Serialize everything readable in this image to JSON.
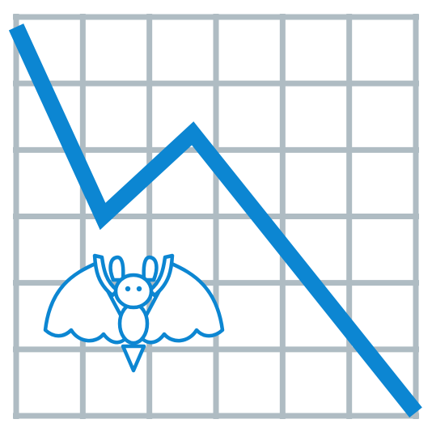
{
  "icon": {
    "name": "declining-chart-with-bat-icon",
    "grid_color": "#AFBCC3",
    "line_color": "#0C86D2",
    "bat_color": "#0C86D2",
    "background_color": "#FFFFFF"
  },
  "chart_data": {
    "type": "line",
    "title": "",
    "xlabel": "",
    "ylabel": "",
    "grid": true,
    "legend": "none",
    "xlim": [
      0,
      6
    ],
    "ylim": [
      0,
      6
    ],
    "x": [
      0,
      1.3,
      2.65,
      6
    ],
    "series": [
      {
        "values": [
          5.85,
          3.0,
          4.25,
          0.05
        ]
      }
    ]
  }
}
